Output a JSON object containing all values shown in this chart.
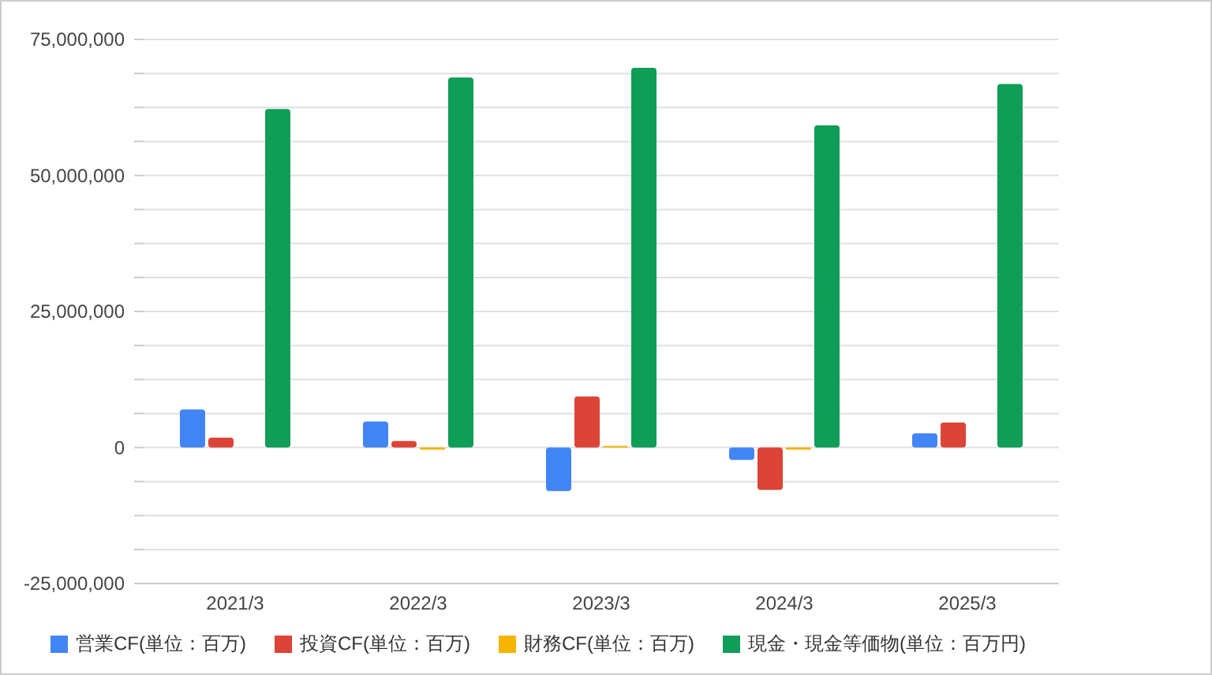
{
  "chart_data": {
    "type": "bar",
    "categories": [
      "2021/3",
      "2022/3",
      "2023/3",
      "2024/3",
      "2025/3"
    ],
    "series": [
      {
        "name": "営業CF(単位：百万)",
        "color": "#4285f4",
        "values": [
          7000000,
          4800000,
          -8000000,
          -2300000,
          2600000
        ]
      },
      {
        "name": "投資CF(単位：百万)",
        "color": "#db4437",
        "values": [
          1800000,
          1200000,
          9400000,
          -7800000,
          4600000
        ]
      },
      {
        "name": "財務CF(単位：百万)",
        "color": "#f4b400",
        "values": [
          null,
          -400000,
          300000,
          -400000,
          null
        ]
      },
      {
        "name": "現金・現金等価物(単位：百万円)",
        "color": "#0f9d58",
        "values": [
          62200000,
          68000000,
          69800000,
          59200000,
          66800000
        ]
      }
    ],
    "ylim": [
      -25000000,
      75000000
    ],
    "yticks": [
      {
        "value": -25000000,
        "label": "-25,000,000"
      },
      {
        "value": -18750000,
        "label": null
      },
      {
        "value": -12500000,
        "label": null
      },
      {
        "value": -6250000,
        "label": null
      },
      0,
      {
        "value": 6250000,
        "label": null
      },
      {
        "value": 12500000,
        "label": null
      },
      {
        "value": 18750000,
        "label": null
      },
      {
        "value": 25000000,
        "label": "25,000,000"
      },
      {
        "value": 31250000,
        "label": null
      },
      {
        "value": 37500000,
        "label": null
      },
      {
        "value": 43750000,
        "label": null
      },
      {
        "value": 50000000,
        "label": "50,000,000"
      },
      {
        "value": 56250000,
        "label": null
      },
      {
        "value": 62500000,
        "label": null
      },
      {
        "value": 68750000,
        "label": null
      },
      {
        "value": 75000000,
        "label": "75,000,000"
      }
    ],
    "grid": "y",
    "legend": "bottom"
  }
}
